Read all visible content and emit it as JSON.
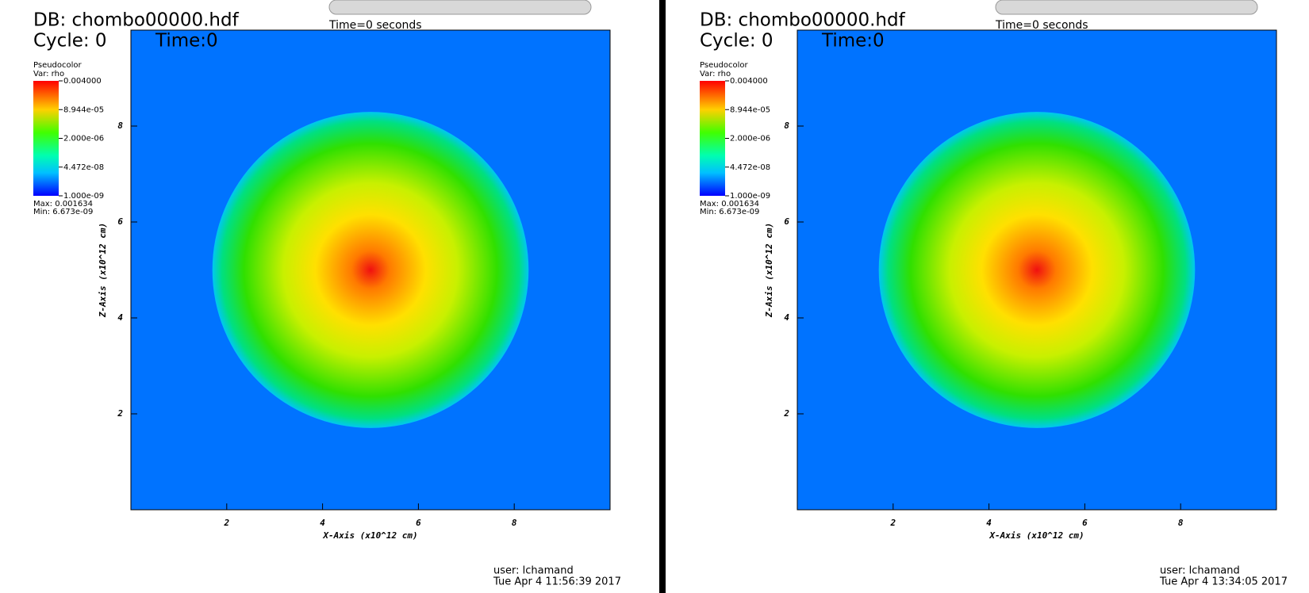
{
  "panels": [
    {
      "db": "DB: chombo00000.hdf",
      "cycle": "Cycle: 0",
      "time": "Time:0",
      "slider_label": "Time=0 seconds",
      "legend": {
        "title": "Pseudocolor",
        "var": "Var: rho",
        "labels": [
          "0.004000",
          "8.944e-05",
          "2.000e-06",
          "4.472e-08",
          "1.000e-09"
        ],
        "max": "Max: 0.001634",
        "min": "Min: 6.673e-09"
      },
      "x_axis": {
        "title": "X-Axis (x10^12 cm)",
        "xlim": [
          0,
          10
        ],
        "xticks": [
          2,
          4,
          6,
          8
        ]
      },
      "z_axis": {
        "title": "Z-Axis (x10^12 cm)",
        "ylim": [
          0,
          10
        ],
        "yticks": [
          2,
          4,
          6,
          8
        ]
      },
      "user": "user: lchamand",
      "date": "Tue Apr  4 11:56:39 2017"
    },
    {
      "db": "DB: chombo00000.hdf",
      "cycle": "Cycle: 0",
      "time": "Time:0",
      "slider_label": "Time=0 seconds",
      "legend": {
        "title": "Pseudocolor",
        "var": "Var: rho",
        "labels": [
          "0.004000",
          "8.944e-05",
          "2.000e-06",
          "4.472e-08",
          "1.000e-09"
        ],
        "max": "Max: 0.001634",
        "min": "Min: 6.673e-09"
      },
      "x_axis": {
        "title": "X-Axis (x10^12 cm)",
        "xlim": [
          0,
          10
        ],
        "xticks": [
          2,
          4,
          6,
          8
        ]
      },
      "z_axis": {
        "title": "Z-Axis (x10^12 cm)",
        "ylim": [
          0,
          10
        ],
        "yticks": [
          2,
          4,
          6,
          8
        ]
      },
      "user": "user: lchamand",
      "date": "Tue Apr  4 13:34:05 2017"
    }
  ]
}
